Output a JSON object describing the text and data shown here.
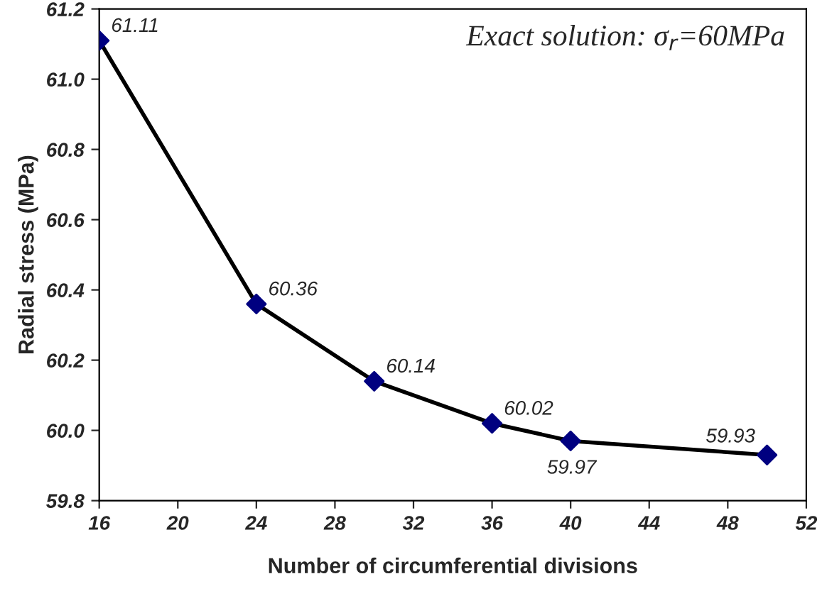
{
  "chart_data": {
    "type": "line",
    "xlabel": "Number of circumferential divisions",
    "ylabel": "Radial stress (MPa)",
    "x": [
      16,
      24,
      30,
      36,
      40,
      50
    ],
    "series": [
      {
        "color": "#000080",
        "values": [
          61.11,
          60.36,
          60.14,
          60.02,
          59.97,
          59.93
        ]
      }
    ],
    "xlim": [
      16,
      52
    ],
    "xticks": [
      16,
      20,
      24,
      28,
      32,
      36,
      40,
      44,
      48,
      52
    ],
    "ylim": [
      59.8,
      61.2
    ],
    "yticks": [
      59.8,
      {
        "value": 60,
        "label": "60.0"
      },
      60.2,
      60.4,
      60.6,
      60.8,
      {
        "value": 61,
        "label": "61.0"
      },
      61.2
    ],
    "annotations": [
      "Exact solution: σ$_{r}$=60MPa"
    ],
    "data_labels": true,
    "marker": "diamond",
    "line_style": "solid",
    "grid": false,
    "legend": false
  }
}
